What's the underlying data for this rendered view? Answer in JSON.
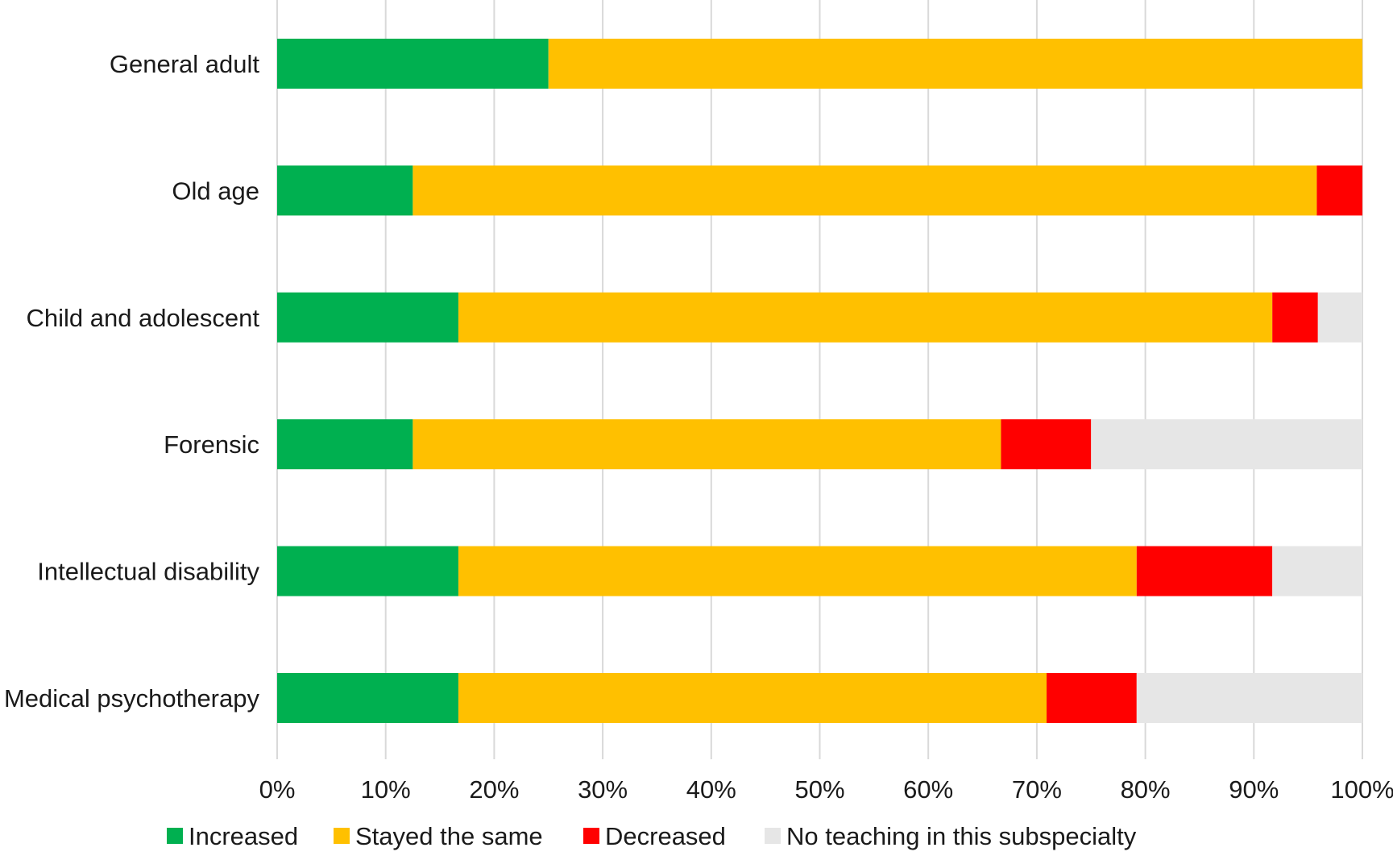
{
  "chart_data": {
    "type": "bar",
    "orientation": "horizontal",
    "stacked": true,
    "percent_stacked": true,
    "title": "",
    "xlabel": "",
    "ylabel": "",
    "xlim": [
      0,
      100
    ],
    "x_ticks": [
      "0%",
      "10%",
      "20%",
      "30%",
      "40%",
      "50%",
      "60%",
      "70%",
      "80%",
      "90%",
      "100%"
    ],
    "grid": "vertical",
    "legend_position": "bottom",
    "categories": [
      "General adult",
      "Old age",
      "Child and adolescent",
      "Forensic",
      "Intellectual disability",
      "Medical psychotherapy"
    ],
    "series": [
      {
        "name": "Increased",
        "color": "#00b050",
        "values": [
          25,
          12.5,
          16.7,
          12.5,
          16.7,
          16.7
        ]
      },
      {
        "name": "Stayed the same",
        "color": "#ffc000",
        "values": [
          75,
          83.3,
          75,
          54.2,
          62.5,
          54.2
        ]
      },
      {
        "name": "Decreased",
        "color": "#ff0000",
        "values": [
          0,
          4.2,
          4.2,
          8.3,
          12.5,
          8.3
        ]
      },
      {
        "name": "No teaching in this subspecialty",
        "color": "#e6e6e6",
        "values": [
          0,
          0,
          4.1,
          25,
          8.3,
          20.8
        ]
      }
    ]
  }
}
